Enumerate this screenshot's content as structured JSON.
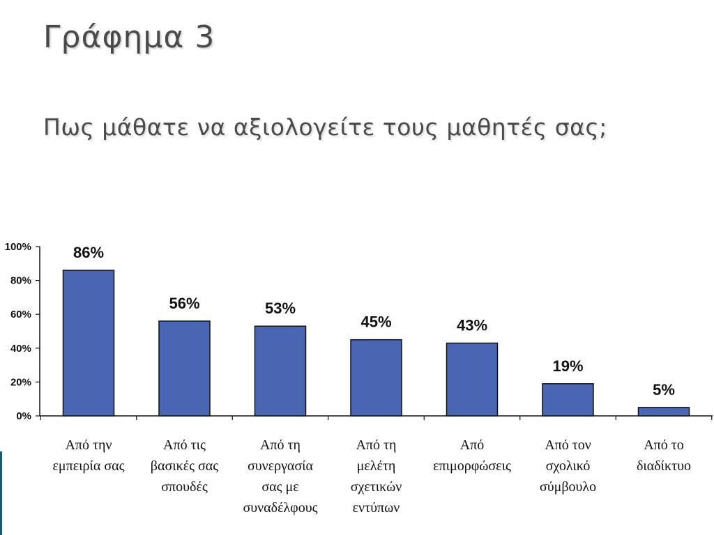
{
  "slide": {
    "title": "Γράφημα 3",
    "subtitle": "Πως μάθατε να αξιολογείτε τους μαθητές σας;"
  },
  "colors": {
    "bar_fill": "#4a66b2",
    "bar_stroke": "#111111",
    "title_text": "#4a4a4a",
    "accent": "#1f5a6b"
  },
  "chart_data": {
    "type": "bar",
    "categories": [
      [
        "Από την",
        "εμπειρία σας"
      ],
      [
        "Από τις",
        "βασικές σας",
        "σπουδές"
      ],
      [
        "Από τη",
        "συνεργασία",
        "σας με",
        "συναδέλφους"
      ],
      [
        "Από τη",
        "μελέτη",
        "σχετικών",
        "εντύπων"
      ],
      [
        "Από",
        "επιμορφώσεις"
      ],
      [
        "Από τον",
        "σχολικό",
        "σύμβουλο"
      ],
      [
        "Από το",
        "διαδίκτυο"
      ]
    ],
    "values": [
      86,
      56,
      53,
      45,
      43,
      19,
      5
    ],
    "data_labels": [
      "86%",
      "56%",
      "53%",
      "45%",
      "43%",
      "19%",
      "5%"
    ],
    "yticks": [
      "0%",
      "20%",
      "40%",
      "60%",
      "80%",
      "100%"
    ],
    "ylim": [
      0,
      100
    ],
    "grid": false,
    "legend": "none"
  }
}
